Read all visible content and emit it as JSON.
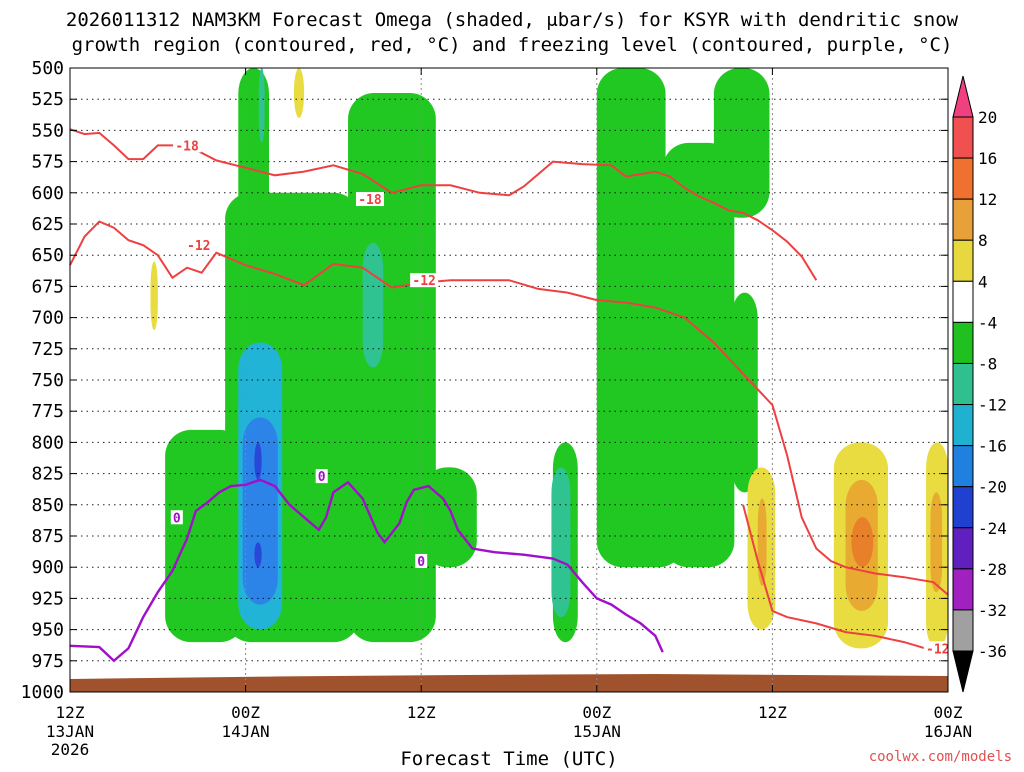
{
  "chart_data": {
    "type": "heatmap",
    "title_line1": "2026011312 NAM3KM Forecast Omega (shaded, μbar/s) for KSYR with dendritic snow",
    "title_line2": "growth region (contoured, red, °C) and freezing level (contoured, purple, °C)",
    "xlabel": "Forecast Time (UTC)",
    "credit": "coolwx.com/models",
    "x_range_hours": [
      0,
      60
    ],
    "y_range_hpa": [
      500,
      1000
    ],
    "pressure_levels": [
      "500",
      "525",
      "550",
      "575",
      "600",
      "625",
      "650",
      "675",
      "700",
      "725",
      "750",
      "775",
      "800",
      "825",
      "850",
      "875",
      "900",
      "925",
      "950",
      "975",
      "1000"
    ],
    "x_ticks": [
      {
        "hour": 0,
        "label": "12Z",
        "sub": "13JAN",
        "sub2": "2026"
      },
      {
        "hour": 12,
        "label": "00Z",
        "sub": "14JAN",
        "sub2": ""
      },
      {
        "hour": 24,
        "label": "12Z",
        "sub": "",
        "sub2": ""
      },
      {
        "hour": 36,
        "label": "00Z",
        "sub": "15JAN",
        "sub2": ""
      },
      {
        "hour": 48,
        "label": "12Z",
        "sub": "",
        "sub2": ""
      },
      {
        "hour": 60,
        "label": "00Z",
        "sub": "16JAN",
        "sub2": ""
      }
    ],
    "colorbar": {
      "levels": [
        "20",
        "16",
        "12",
        "8",
        "4",
        "-4",
        "-8",
        "-12",
        "-16",
        "-20",
        "-24",
        "-28",
        "-32",
        "-36"
      ],
      "colors": [
        "#f04080",
        "#f05050",
        "#f07030",
        "#e8a038",
        "#e8d840",
        "#ffffff",
        "#20c020",
        "#30c090",
        "#20b0d0",
        "#2080e0",
        "#2040d0",
        "#6020c0",
        "#a020c0",
        "#a0a0a0",
        "#000000"
      ]
    },
    "colors": {
      "green": "#22c822",
      "teal": "#2ec390",
      "cyan": "#22b4d6",
      "blue": "#2c84e8",
      "darkblue": "#2848d8",
      "yellow": "#e8dc40",
      "gold": "#e8aa30",
      "orange": "#e8802a",
      "red_contour": "#ee4040",
      "purple_contour": "#a010c8",
      "terrain": "#a0522d"
    },
    "shading_cells": [
      {
        "x0": 5.5,
        "x1": 6.0,
        "p0": 655,
        "p1": 710,
        "color": "yellow"
      },
      {
        "x0": 15.3,
        "x1": 16.0,
        "p0": 500,
        "p1": 540,
        "color": "yellow"
      },
      {
        "x0": 11.5,
        "x1": 13.6,
        "p0": 500,
        "p1": 800,
        "color": "green"
      },
      {
        "x0": 10.6,
        "x1": 19.8,
        "p0": 600,
        "p1": 960,
        "color": "green"
      },
      {
        "x0": 19.0,
        "x1": 25.0,
        "p0": 520,
        "p1": 960,
        "color": "green"
      },
      {
        "x0": 6.5,
        "x1": 12.0,
        "p0": 790,
        "p1": 960,
        "color": "green"
      },
      {
        "x0": 24.0,
        "x1": 27.8,
        "p0": 820,
        "p1": 900,
        "color": "green"
      },
      {
        "x0": 33.0,
        "x1": 34.7,
        "p0": 800,
        "p1": 960,
        "color": "green"
      },
      {
        "x0": 36.0,
        "x1": 40.7,
        "p0": 500,
        "p1": 660,
        "color": "green"
      },
      {
        "x0": 36.0,
        "x1": 42.0,
        "p0": 620,
        "p1": 900,
        "color": "green"
      },
      {
        "x0": 40.5,
        "x1": 45.4,
        "p0": 560,
        "p1": 900,
        "color": "green"
      },
      {
        "x0": 44.0,
        "x1": 47.8,
        "p0": 500,
        "p1": 620,
        "color": "green"
      },
      {
        "x0": 45.2,
        "x1": 47.0,
        "p0": 680,
        "p1": 840,
        "color": "green"
      },
      {
        "x0": 12.3,
        "x1": 13.5,
        "p0": 720,
        "p1": 940,
        "color": "teal"
      },
      {
        "x0": 12.9,
        "x1": 13.3,
        "p0": 500,
        "p1": 560,
        "color": "teal"
      },
      {
        "x0": 20.0,
        "x1": 21.4,
        "p0": 640,
        "p1": 740,
        "color": "teal"
      },
      {
        "x0": 32.9,
        "x1": 34.2,
        "p0": 820,
        "p1": 940,
        "color": "teal"
      },
      {
        "x0": 11.5,
        "x1": 14.5,
        "p0": 720,
        "p1": 950,
        "color": "cyan"
      },
      {
        "x0": 11.8,
        "x1": 14.2,
        "p0": 780,
        "p1": 930,
        "color": "blue"
      },
      {
        "x0": 12.6,
        "x1": 13.1,
        "p0": 800,
        "p1": 830,
        "color": "darkblue"
      },
      {
        "x0": 12.6,
        "x1": 13.1,
        "p0": 880,
        "p1": 900,
        "color": "darkblue"
      },
      {
        "x0": 46.3,
        "x1": 48.2,
        "p0": 820,
        "p1": 950,
        "color": "yellow"
      },
      {
        "x0": 52.2,
        "x1": 55.9,
        "p0": 800,
        "p1": 965,
        "color": "yellow"
      },
      {
        "x0": 58.5,
        "x1": 60.0,
        "p0": 800,
        "p1": 965,
        "color": "yellow"
      },
      {
        "x0": 47.0,
        "x1": 47.6,
        "p0": 845,
        "p1": 915,
        "color": "gold"
      },
      {
        "x0": 53.0,
        "x1": 55.2,
        "p0": 830,
        "p1": 935,
        "color": "gold"
      },
      {
        "x0": 58.8,
        "x1": 59.6,
        "p0": 840,
        "p1": 920,
        "color": "gold"
      },
      {
        "x0": 53.4,
        "x1": 54.9,
        "p0": 860,
        "p1": 900,
        "color": "orange"
      }
    ],
    "red_contours": [
      {
        "label": "-18",
        "label_at": [
          8.0,
          562
        ],
        "points": [
          [
            0,
            549
          ],
          [
            1,
            553
          ],
          [
            2,
            552
          ],
          [
            3,
            562
          ],
          [
            4,
            573
          ],
          [
            5,
            573
          ],
          [
            6,
            562
          ],
          [
            8,
            562
          ],
          [
            10,
            574
          ],
          [
            12,
            580
          ],
          [
            14,
            586
          ],
          [
            16,
            583
          ],
          [
            18,
            578
          ],
          [
            20,
            585
          ],
          [
            22,
            600
          ],
          [
            24,
            594
          ],
          [
            26,
            594
          ],
          [
            28,
            600
          ],
          [
            30,
            602
          ],
          [
            31,
            595
          ],
          [
            32,
            585
          ],
          [
            33,
            575
          ],
          [
            35,
            577
          ],
          [
            37,
            578
          ],
          [
            38,
            587
          ],
          [
            39,
            585
          ],
          [
            40,
            583
          ],
          [
            41,
            587
          ],
          [
            42,
            596
          ],
          [
            43,
            603
          ],
          [
            44,
            608
          ],
          [
            45,
            614
          ],
          [
            46,
            616
          ],
          [
            47,
            622
          ],
          [
            48,
            630
          ],
          [
            49,
            639
          ],
          [
            50,
            651
          ],
          [
            51,
            670
          ]
        ]
      },
      {
        "label": "-12",
        "label_at": [
          8.8,
          642
        ],
        "points": [
          [
            0,
            658
          ],
          [
            1,
            635
          ],
          [
            2,
            623
          ],
          [
            3,
            628
          ],
          [
            4,
            638
          ],
          [
            5,
            642
          ],
          [
            6,
            650
          ],
          [
            7,
            668
          ],
          [
            8,
            660
          ],
          [
            9,
            664
          ],
          [
            10,
            648
          ],
          [
            12,
            658
          ],
          [
            14,
            665
          ],
          [
            16,
            674
          ],
          [
            18,
            657
          ],
          [
            20,
            660
          ],
          [
            22,
            676
          ],
          [
            24,
            672
          ],
          [
            26,
            670
          ],
          [
            28,
            670
          ],
          [
            30,
            670
          ],
          [
            32,
            677
          ],
          [
            34,
            680
          ],
          [
            36,
            686
          ],
          [
            38,
            688
          ],
          [
            40,
            692
          ],
          [
            42,
            700
          ],
          [
            44,
            720
          ],
          [
            46,
            745
          ],
          [
            48,
            770
          ],
          [
            49,
            810
          ],
          [
            50,
            860
          ],
          [
            51,
            885
          ],
          [
            52,
            895
          ],
          [
            53,
            900
          ],
          [
            55,
            905
          ],
          [
            57,
            908
          ],
          [
            59,
            912
          ],
          [
            60,
            922
          ]
        ]
      },
      {
        "label": "",
        "label_at": null,
        "points": [
          [
            46,
            850
          ],
          [
            47,
            895
          ],
          [
            48,
            935
          ],
          [
            49,
            940
          ],
          [
            51,
            945
          ],
          [
            53,
            952
          ],
          [
            55,
            955
          ],
          [
            57,
            960
          ],
          [
            59,
            967
          ],
          [
            60,
            970
          ]
        ]
      }
    ],
    "purple_contour": {
      "label": "0",
      "points": [
        [
          0,
          963
        ],
        [
          2,
          964
        ],
        [
          3,
          975
        ],
        [
          4,
          965
        ],
        [
          5,
          940
        ],
        [
          6,
          920
        ],
        [
          7,
          903
        ],
        [
          8,
          877
        ],
        [
          8.6,
          855
        ],
        [
          9.4,
          848
        ],
        [
          10.2,
          840
        ],
        [
          11.0,
          835
        ],
        [
          12.0,
          834
        ],
        [
          13.0,
          830
        ],
        [
          14.0,
          835
        ],
        [
          15.0,
          850
        ],
        [
          16.0,
          860
        ],
        [
          17.0,
          870
        ],
        [
          17.5,
          860
        ],
        [
          18.0,
          840
        ],
        [
          19.0,
          832
        ],
        [
          20.0,
          845
        ],
        [
          21.0,
          872
        ],
        [
          21.5,
          880
        ],
        [
          22.5,
          865
        ],
        [
          23.0,
          848
        ],
        [
          23.5,
          838
        ],
        [
          24.5,
          835
        ],
        [
          25.5,
          845
        ],
        [
          26.0,
          855
        ],
        [
          26.5,
          870
        ],
        [
          27.5,
          885
        ],
        [
          29.0,
          888
        ],
        [
          31.0,
          890
        ],
        [
          33.0,
          893
        ],
        [
          34.0,
          898
        ],
        [
          35.0,
          912
        ],
        [
          36.0,
          925
        ],
        [
          37.0,
          930
        ],
        [
          38.0,
          938
        ],
        [
          39.0,
          945
        ],
        [
          40.0,
          955
        ],
        [
          40.5,
          968
        ]
      ]
    },
    "terrain_top_hpa": 988
  }
}
